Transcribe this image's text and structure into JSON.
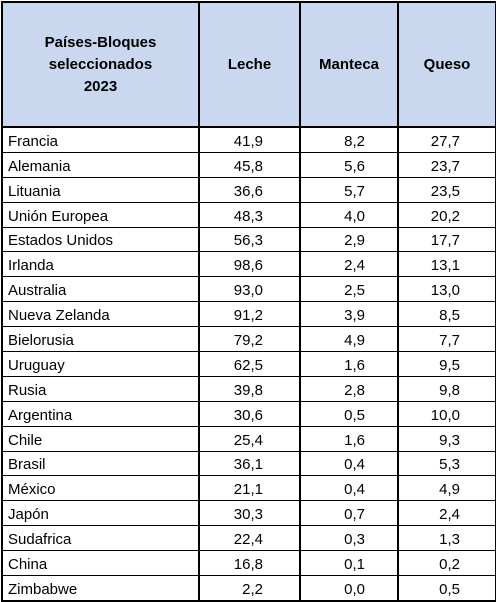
{
  "table": {
    "header": {
      "country_lines": [
        "Países-Bloques",
        "seleccionados",
        "2023"
      ],
      "leche": "Leche",
      "manteca": "Manteca",
      "queso": "Queso"
    },
    "rows": [
      {
        "country": "Francia",
        "leche": "41,9",
        "manteca": "8,2",
        "queso": "27,7"
      },
      {
        "country": "Alemania",
        "leche": "45,8",
        "manteca": "5,6",
        "queso": "23,7"
      },
      {
        "country": "Lituania",
        "leche": "36,6",
        "manteca": "5,7",
        "queso": "23,5"
      },
      {
        "country": "Unión Europea",
        "leche": "48,3",
        "manteca": "4,0",
        "queso": "20,2"
      },
      {
        "country": "Estados Unidos",
        "leche": "56,3",
        "manteca": "2,9",
        "queso": "17,7"
      },
      {
        "country": "Irlanda",
        "leche": "98,6",
        "manteca": "2,4",
        "queso": "13,1"
      },
      {
        "country": "Australia",
        "leche": "93,0",
        "manteca": "2,5",
        "queso": "13,0"
      },
      {
        "country": "Nueva Zelanda",
        "leche": "91,2",
        "manteca": "3,9",
        "queso": "8,5"
      },
      {
        "country": "Bielorusia",
        "leche": "79,2",
        "manteca": "4,9",
        "queso": "7,7"
      },
      {
        "country": "Uruguay",
        "leche": "62,5",
        "manteca": "1,6",
        "queso": "9,5"
      },
      {
        "country": "Rusia",
        "leche": "39,8",
        "manteca": "2,8",
        "queso": "9,8"
      },
      {
        "country": "Argentina",
        "leche": "30,6",
        "manteca": "0,5",
        "queso": "10,0"
      },
      {
        "country": "Chile",
        "leche": "25,4",
        "manteca": "1,6",
        "queso": "9,3"
      },
      {
        "country": "Brasil",
        "leche": "36,1",
        "manteca": "0,4",
        "queso": "5,3"
      },
      {
        "country": "México",
        "leche": "21,1",
        "manteca": "0,4",
        "queso": "4,9"
      },
      {
        "country": "Japón",
        "leche": "30,3",
        "manteca": "0,7",
        "queso": "2,4"
      },
      {
        "country": "Sudafrica",
        "leche": "22,4",
        "manteca": "0,3",
        "queso": "1,3"
      },
      {
        "country": "China",
        "leche": "16,8",
        "manteca": "0,1",
        "queso": "0,2"
      },
      {
        "country": "Zimbabwe",
        "leche": "2,2",
        "manteca": "0,0",
        "queso": "0,5"
      }
    ]
  },
  "colors": {
    "header_fill": "#c9d8ee",
    "grid": "#000000"
  }
}
